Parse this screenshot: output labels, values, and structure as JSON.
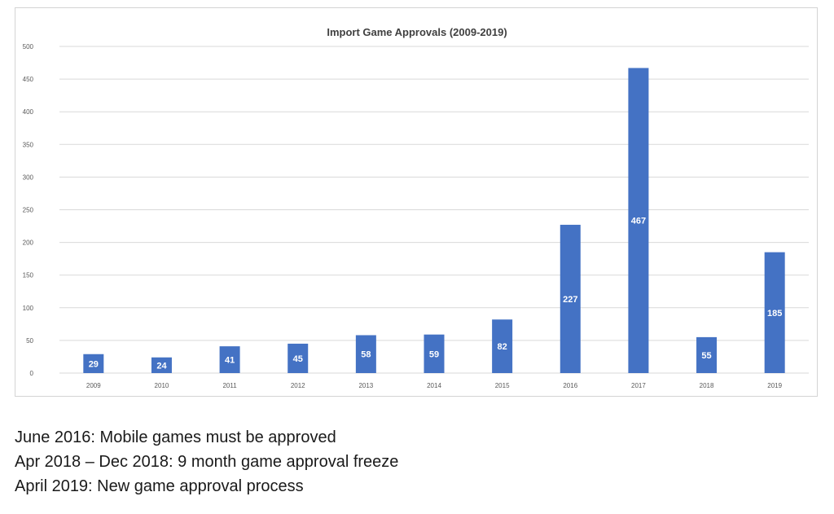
{
  "chart_data": {
    "type": "bar",
    "title": "Import Game Approvals (2009-2019)",
    "xlabel": "",
    "ylabel": "",
    "categories": [
      "2009",
      "2010",
      "2011",
      "2012",
      "2013",
      "2014",
      "2015",
      "2016",
      "2017",
      "2018",
      "2019"
    ],
    "values": [
      29,
      24,
      41,
      45,
      58,
      59,
      82,
      227,
      467,
      55,
      185
    ],
    "ylim": [
      0,
      500
    ],
    "yticks": [
      0,
      50,
      100,
      150,
      200,
      250,
      300,
      350,
      400,
      450,
      500
    ],
    "grid": true,
    "legend": "none",
    "bar_color": "#4472c4",
    "data_label_color": "#ffffff",
    "grid_color": "#d9d9d9"
  },
  "notes": [
    "June 2016: Mobile games must be approved",
    "Apr 2018 – Dec 2018: 9 month game approval freeze",
    "April 2019: New game approval process"
  ]
}
